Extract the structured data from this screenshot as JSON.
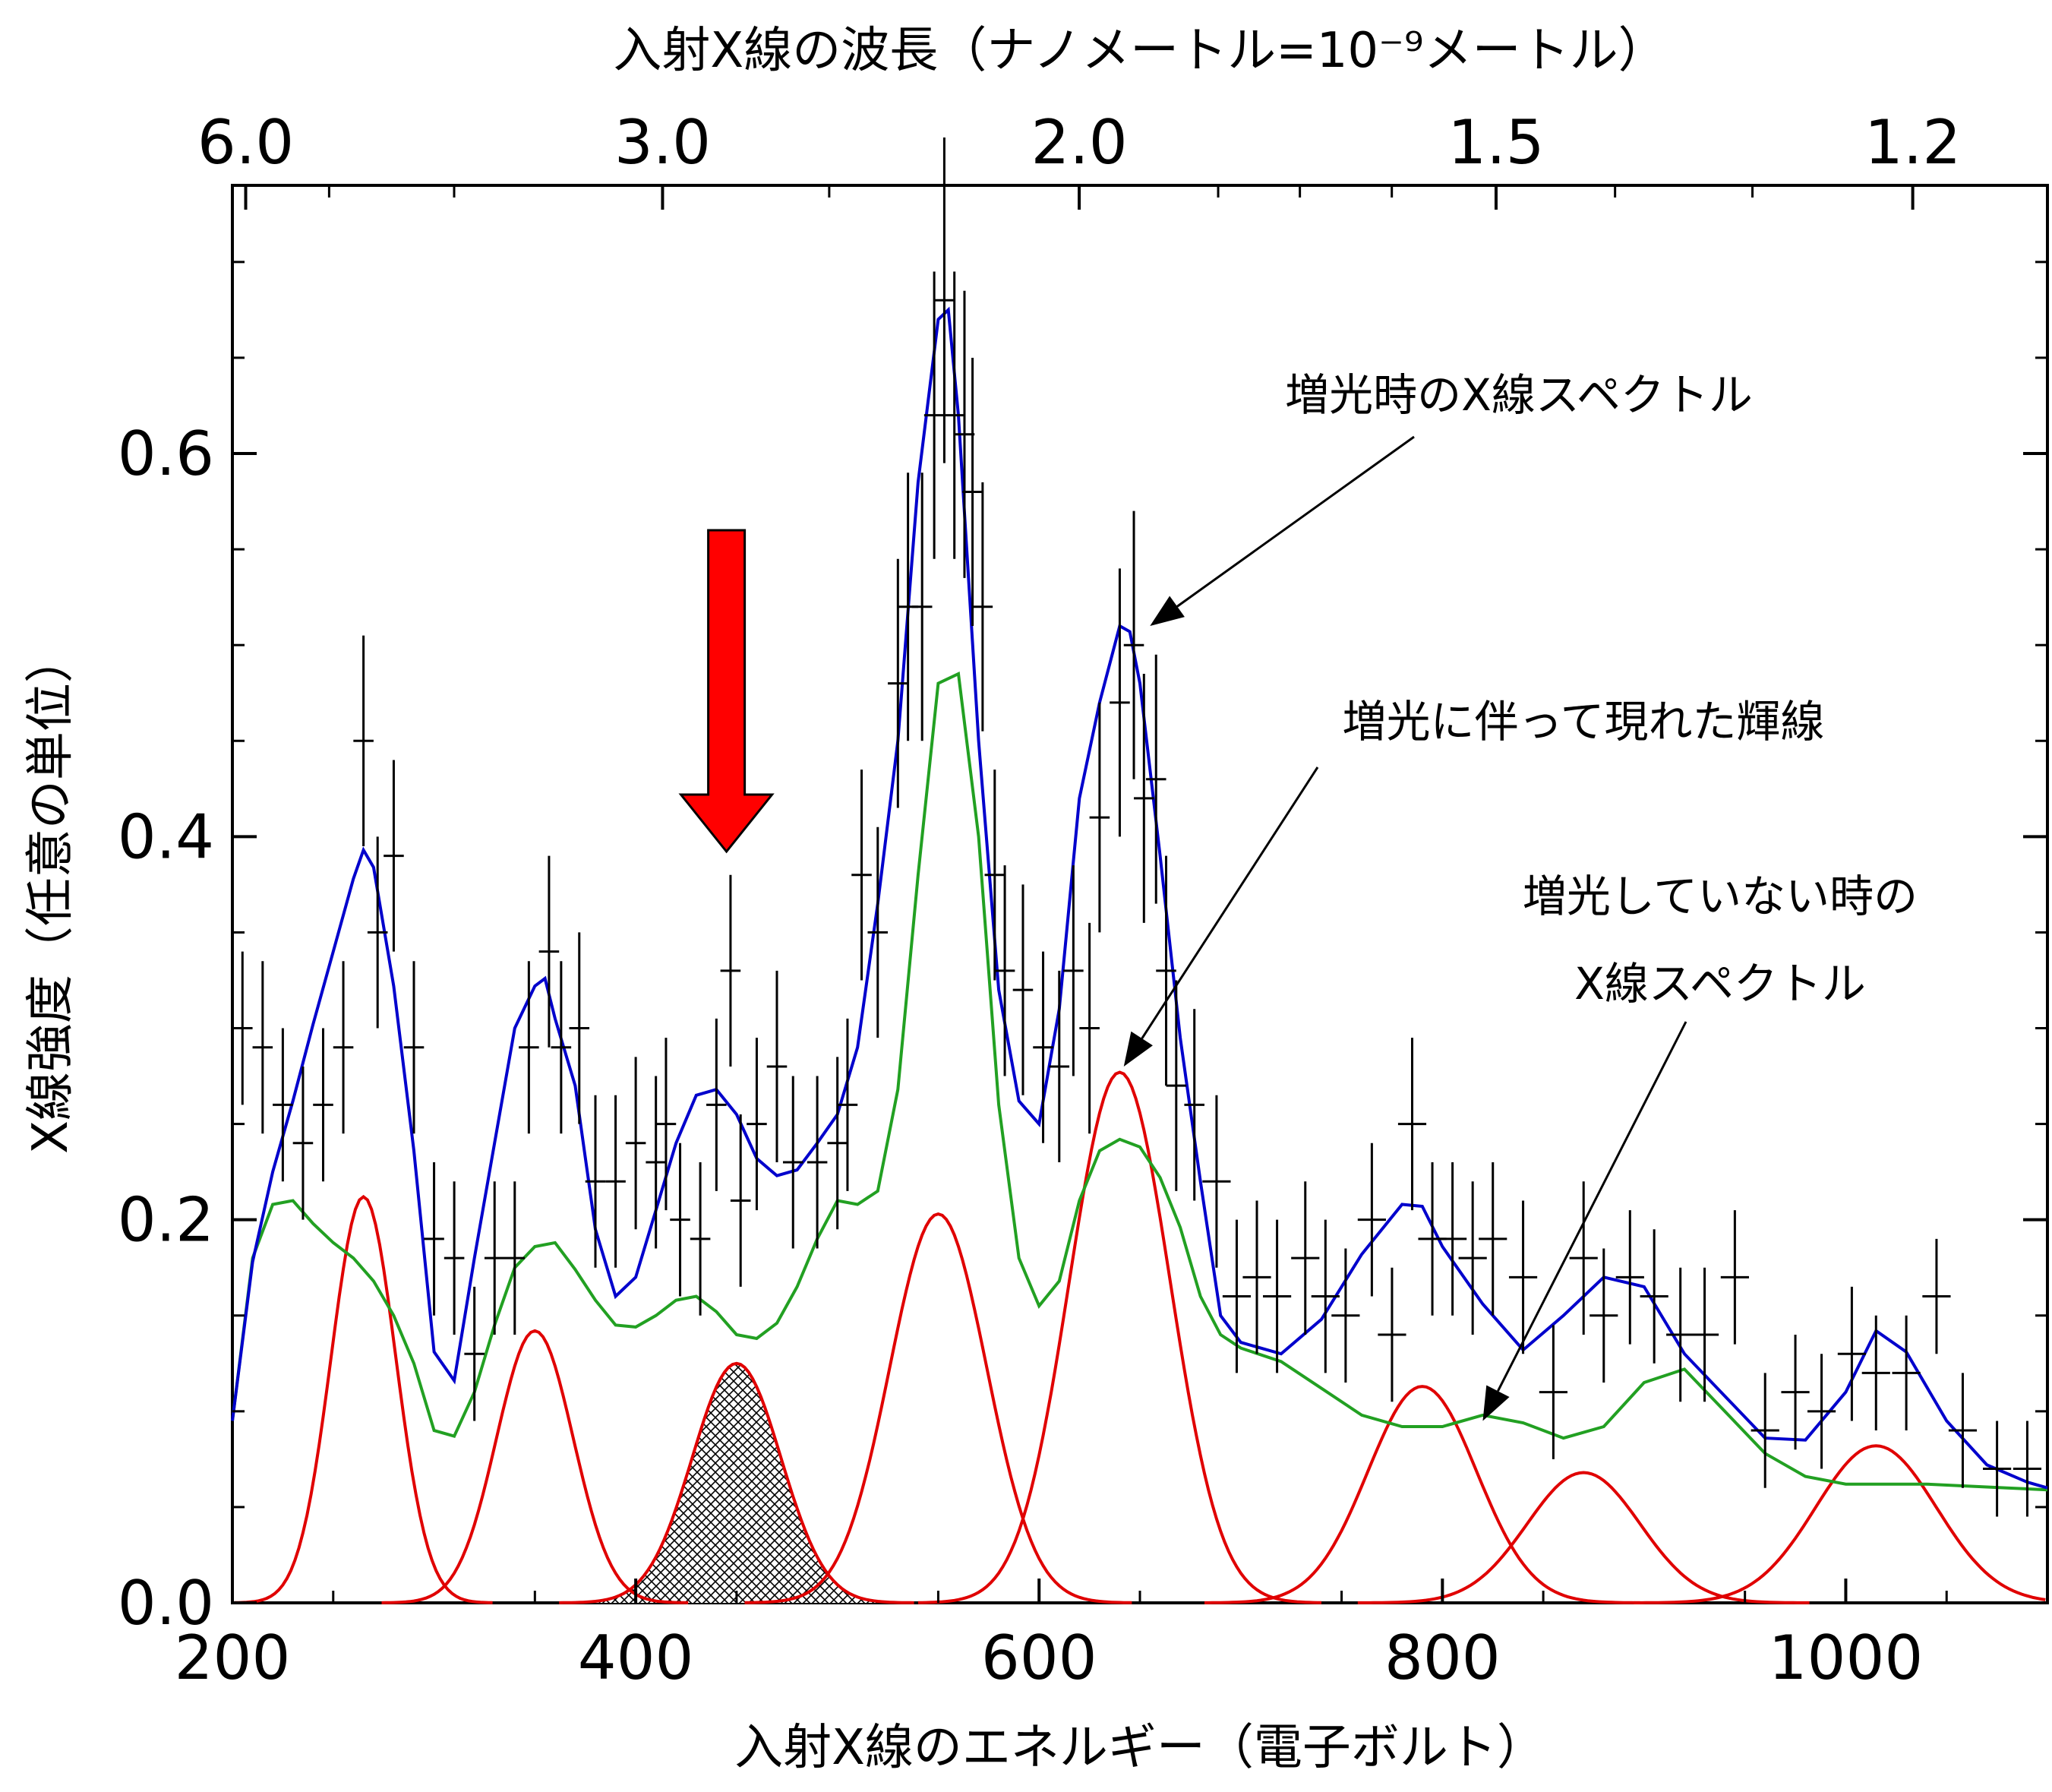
{
  "chart_data": {
    "type": "line",
    "xlabel": "入射X線のエネルギー（電子ボルト）",
    "ylabel": "X線強度（任意の単位）",
    "top_xlabel": "入射X線の波長（ナノメートル=10⁻⁹メートル）",
    "xlim": [
      200,
      1100
    ],
    "ylim": [
      0.0,
      0.74
    ],
    "x_ticks": [
      200,
      400,
      600,
      800,
      1000
    ],
    "x_tick_labels": [
      "200",
      "400",
      "600",
      "800",
      "1000"
    ],
    "y_ticks": [
      0.0,
      0.2,
      0.4,
      0.6
    ],
    "y_tick_labels": [
      "0.0",
      "0.2",
      "0.4",
      "0.6"
    ],
    "top_ticks": [
      {
        "label": "6.0",
        "energy": 206.6
      },
      {
        "label": "3.0",
        "energy": 413.3
      },
      {
        "label": "2.0",
        "energy": 619.9
      },
      {
        "label": "1.5",
        "energy": 826.6
      },
      {
        "label": "1.2",
        "energy": 1033.2
      }
    ],
    "annotations": [
      {
        "text": "増光時のX線スペクトル",
        "target": [
          655,
          0.51
        ]
      },
      {
        "text": "増光に伴って現れた輝線",
        "target": [
          642,
          0.28
        ]
      },
      {
        "text": "増光していない時の",
        "text2": "X線スペクトル",
        "target": [
          820,
          0.095
        ]
      }
    ],
    "highlight_arrow_x": 445,
    "hatched_line": {
      "center": 450,
      "amp": 0.125,
      "sigma": 22
    },
    "emission_lines": [
      {
        "center": 265,
        "amp": 0.212,
        "sigma": 16
      },
      {
        "center": 350,
        "amp": 0.142,
        "sigma": 19
      },
      {
        "center": 450,
        "amp": 0.125,
        "sigma": 22
      },
      {
        "center": 550,
        "amp": 0.203,
        "sigma": 24
      },
      {
        "center": 640,
        "amp": 0.277,
        "sigma": 25
      },
      {
        "center": 790,
        "amp": 0.113,
        "sigma": 27
      },
      {
        "center": 870,
        "amp": 0.068,
        "sigma": 28
      },
      {
        "center": 1015,
        "amp": 0.082,
        "sigma": 30
      }
    ],
    "series": [
      {
        "name": "",
        "color": "#0000cc",
        "x": [
          200,
          210,
          220,
          230,
          240,
          250,
          260,
          265,
          270,
          280,
          290,
          300,
          310,
          320,
          330,
          340,
          350,
          355,
          360,
          370,
          380,
          390,
          400,
          410,
          420,
          430,
          440,
          450,
          460,
          470,
          480,
          490,
          500,
          510,
          520,
          530,
          540,
          550,
          555,
          560,
          570,
          580,
          590,
          600,
          610,
          620,
          630,
          640,
          645,
          650,
          660,
          670,
          680,
          690,
          700,
          720,
          740,
          760,
          780,
          790,
          800,
          820,
          840,
          860,
          880,
          900,
          920,
          940,
          960,
          980,
          1000,
          1015,
          1030,
          1050,
          1070,
          1090,
          1100
        ],
        "y": [
          0.095,
          0.178,
          0.225,
          0.262,
          0.302,
          0.34,
          0.378,
          0.393,
          0.384,
          0.322,
          0.236,
          0.131,
          0.116,
          0.18,
          0.24,
          0.3,
          0.322,
          0.326,
          0.305,
          0.27,
          0.195,
          0.16,
          0.17,
          0.205,
          0.24,
          0.265,
          0.268,
          0.255,
          0.232,
          0.223,
          0.226,
          0.24,
          0.255,
          0.29,
          0.365,
          0.45,
          0.585,
          0.67,
          0.675,
          0.62,
          0.45,
          0.32,
          0.262,
          0.25,
          0.31,
          0.42,
          0.47,
          0.51,
          0.507,
          0.48,
          0.39,
          0.295,
          0.22,
          0.15,
          0.136,
          0.13,
          0.148,
          0.182,
          0.208,
          0.207,
          0.186,
          0.156,
          0.132,
          0.15,
          0.17,
          0.165,
          0.13,
          0.108,
          0.086,
          0.085,
          0.11,
          0.142,
          0.131,
          0.095,
          0.072,
          0.063,
          0.06
        ]
      },
      {
        "name": "",
        "color": "#22a022",
        "x": [
          200,
          210,
          220,
          230,
          240,
          250,
          260,
          270,
          280,
          290,
          300,
          310,
          320,
          330,
          340,
          350,
          360,
          370,
          380,
          390,
          400,
          410,
          420,
          430,
          440,
          450,
          460,
          470,
          480,
          490,
          500,
          510,
          520,
          530,
          540,
          550,
          560,
          570,
          580,
          590,
          600,
          610,
          620,
          630,
          640,
          650,
          660,
          670,
          680,
          690,
          700,
          720,
          740,
          760,
          780,
          800,
          820,
          840,
          860,
          880,
          900,
          920,
          940,
          960,
          980,
          1000,
          1020,
          1040,
          1060,
          1080,
          1100
        ],
        "y": [
          0.095,
          0.18,
          0.208,
          0.21,
          0.198,
          0.188,
          0.18,
          0.168,
          0.15,
          0.125,
          0.09,
          0.087,
          0.11,
          0.145,
          0.175,
          0.186,
          0.188,
          0.174,
          0.158,
          0.145,
          0.144,
          0.15,
          0.158,
          0.16,
          0.152,
          0.14,
          0.138,
          0.146,
          0.165,
          0.19,
          0.21,
          0.208,
          0.215,
          0.268,
          0.38,
          0.48,
          0.485,
          0.4,
          0.26,
          0.18,
          0.155,
          0.168,
          0.21,
          0.236,
          0.242,
          0.238,
          0.222,
          0.196,
          0.16,
          0.14,
          0.133,
          0.126,
          0.112,
          0.098,
          0.092,
          0.092,
          0.098,
          0.094,
          0.086,
          0.092,
          0.115,
          0.122,
          0.1,
          0.078,
          0.066,
          0.062,
          0.062,
          0.062,
          0.061,
          0.06,
          0.059
        ]
      }
    ],
    "data_points": {
      "x": [
        205,
        215,
        225,
        235,
        245,
        255,
        265,
        272,
        280,
        290,
        300,
        310,
        320,
        330,
        340,
        347,
        357,
        363,
        372,
        380,
        390,
        400,
        410,
        415,
        422,
        432,
        440,
        447,
        452,
        460,
        470,
        478,
        490,
        500,
        505,
        512,
        520,
        530,
        535,
        542,
        548,
        553,
        558,
        563,
        567,
        572,
        578,
        583,
        592,
        602,
        610,
        617,
        625,
        630,
        640,
        647,
        652,
        658,
        663,
        668,
        677,
        688,
        698,
        708,
        718,
        732,
        742,
        752,
        765,
        775,
        785,
        795,
        805,
        815,
        825,
        840,
        855,
        870,
        880,
        893,
        905,
        918,
        930,
        945,
        960,
        975,
        988,
        1003,
        1015,
        1030,
        1045,
        1058,
        1075,
        1090
      ],
      "y": [
        0.3,
        0.29,
        0.26,
        0.24,
        0.26,
        0.29,
        0.45,
        0.35,
        0.39,
        0.29,
        0.19,
        0.18,
        0.13,
        0.18,
        0.18,
        0.29,
        0.34,
        0.29,
        0.3,
        0.22,
        0.22,
        0.24,
        0.23,
        0.25,
        0.2,
        0.19,
        0.26,
        0.33,
        0.21,
        0.25,
        0.28,
        0.23,
        0.23,
        0.24,
        0.26,
        0.38,
        0.35,
        0.48,
        0.52,
        0.52,
        0.62,
        0.68,
        0.62,
        0.61,
        0.58,
        0.52,
        0.38,
        0.33,
        0.32,
        0.29,
        0.28,
        0.33,
        0.3,
        0.41,
        0.47,
        0.5,
        0.42,
        0.43,
        0.33,
        0.27,
        0.26,
        0.22,
        0.16,
        0.17,
        0.16,
        0.18,
        0.16,
        0.15,
        0.2,
        0.14,
        0.25,
        0.19,
        0.19,
        0.18,
        0.19,
        0.17,
        0.11,
        0.18,
        0.15,
        0.17,
        0.16,
        0.14,
        0.14,
        0.17,
        0.09,
        0.11,
        0.1,
        0.13,
        0.12,
        0.12,
        0.16,
        0.09,
        0.07,
        0.07
      ],
      "yerr": [
        0.04,
        0.045,
        0.04,
        0.04,
        0.04,
        0.045,
        0.055,
        0.05,
        0.05,
        0.045,
        0.04,
        0.04,
        0.035,
        0.04,
        0.04,
        0.045,
        0.05,
        0.045,
        0.05,
        0.045,
        0.045,
        0.045,
        0.045,
        0.045,
        0.04,
        0.04,
        0.045,
        0.05,
        0.045,
        0.045,
        0.05,
        0.045,
        0.045,
        0.045,
        0.045,
        0.055,
        0.055,
        0.065,
        0.07,
        0.07,
        0.075,
        0.085,
        0.075,
        0.075,
        0.07,
        0.065,
        0.055,
        0.055,
        0.055,
        0.05,
        0.05,
        0.055,
        0.055,
        0.06,
        0.07,
        0.07,
        0.065,
        0.065,
        0.06,
        0.055,
        0.05,
        0.045,
        0.04,
        0.04,
        0.04,
        0.04,
        0.04,
        0.035,
        0.04,
        0.035,
        0.045,
        0.04,
        0.04,
        0.04,
        0.04,
        0.04,
        0.035,
        0.04,
        0.035,
        0.035,
        0.035,
        0.035,
        0.035,
        0.035,
        0.03,
        0.03,
        0.03,
        0.035,
        0.03,
        0.03,
        0.03,
        0.03,
        0.025,
        0.025
      ],
      "xerr": [
        5,
        5,
        5,
        5,
        5,
        5,
        5,
        5,
        5,
        5,
        5,
        5,
        5,
        5,
        5,
        5,
        5,
        5,
        5,
        5,
        5,
        5,
        5,
        5,
        5,
        5,
        5,
        5,
        5,
        5,
        5,
        5,
        5,
        5,
        5,
        5,
        5,
        5,
        5,
        5,
        5,
        5,
        5,
        5,
        5,
        5,
        5,
        5,
        5,
        5,
        5,
        5,
        5,
        5,
        5,
        5,
        5,
        5,
        5,
        5,
        5,
        7,
        7,
        7,
        7,
        7,
        7,
        7,
        7,
        7,
        7,
        7,
        7,
        7,
        7,
        7,
        7,
        7,
        7,
        7,
        7,
        7,
        7,
        7,
        7,
        7,
        7,
        7,
        7,
        7,
        7,
        7,
        7,
        7
      ]
    }
  }
}
